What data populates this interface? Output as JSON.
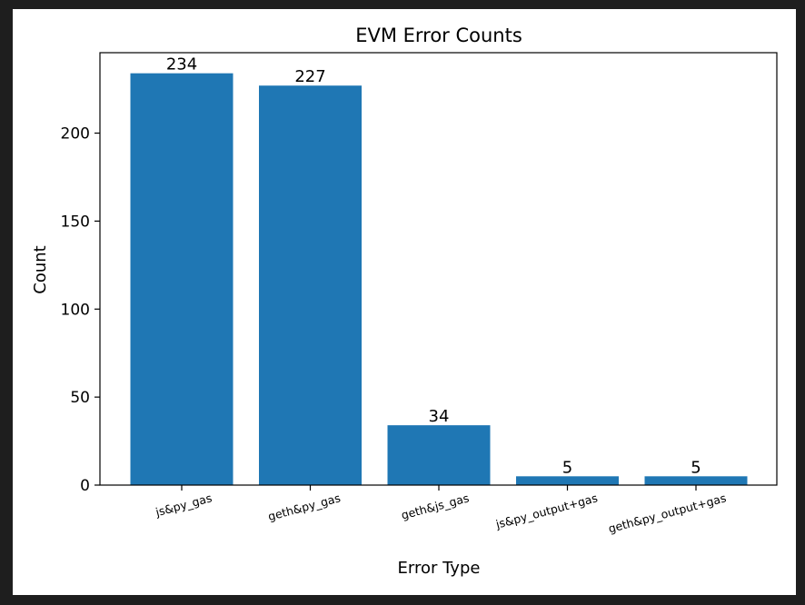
{
  "chart_data": {
    "type": "bar",
    "title": "EVM Error Counts",
    "xlabel": "Error Type",
    "ylabel": "Count",
    "categories": [
      "js&py_gas",
      "geth&py_gas",
      "geth&js_gas",
      "js&py_output+gas",
      "geth&py_output+gas"
    ],
    "values": [
      234,
      227,
      34,
      5,
      5
    ],
    "ylim": [
      0,
      245.7
    ],
    "yticks": [
      0,
      50,
      100,
      150,
      200
    ],
    "bar_color": "#1f77b4",
    "grid": false,
    "legend": "none",
    "data_labels": [
      "234",
      "227",
      "34",
      "5",
      "5"
    ]
  }
}
